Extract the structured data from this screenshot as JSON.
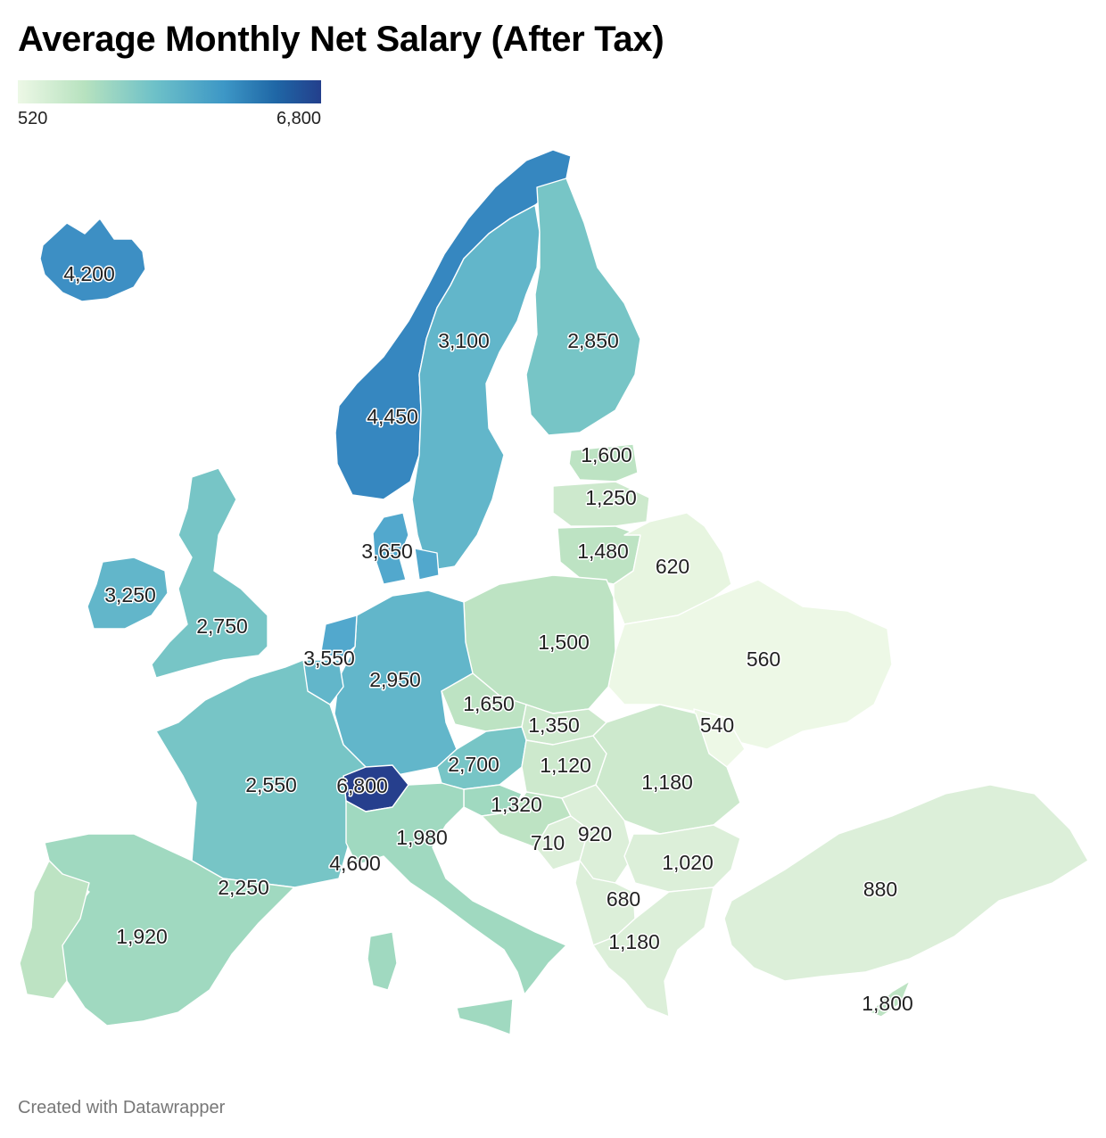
{
  "title": "Average Monthly Net Salary (After Tax)",
  "legend": {
    "min": "520",
    "max": "6,800"
  },
  "credit": "Created with Datawrapper",
  "colors": {
    "c520": "#edf8e6",
    "c600": "#e7f5e0",
    "c900": "#dcefd9",
    "c1200": "#cde9cd",
    "c1500": "#bde3c3",
    "c2000": "#a0d9c0",
    "c2500": "#77c5c6",
    "c3000": "#62b6ca",
    "c3600": "#52a8cd",
    "c4200": "#3d8fc4",
    "c4500": "#3687c0",
    "c6800": "#263f8d"
  },
  "map_data": {
    "type": "choropleth",
    "scale": {
      "min": 520,
      "max": 6800
    },
    "labels": {
      "iceland": "4,200",
      "sweden": "3,100",
      "finland": "2,850",
      "norway": "4,450",
      "estonia": "1,600",
      "latvia": "1,250",
      "lithuania": "1,480",
      "belarus": "620",
      "denmark": "3,650",
      "ireland": "3,250",
      "uk": "2,750",
      "netherlands": "3,550",
      "germany": "2,950",
      "poland": "1,500",
      "ukraine": "560",
      "czechia": "1,650",
      "slovakia": "1,350",
      "moldova": "540",
      "austria": "2,700",
      "hungary": "1,120",
      "romania": "1,180",
      "france": "2,550",
      "switzerland": "6,800",
      "slovenia": "1,320",
      "croatia": "1,980",
      "bosnia": "710",
      "serbia": "920",
      "monaco": "4,600",
      "bulgaria": "1,020",
      "andorra": "2,250",
      "montenegro": "680",
      "turkey": "880",
      "spain": "1,920",
      "greece": "1,180",
      "cyprus": "1,800"
    }
  }
}
